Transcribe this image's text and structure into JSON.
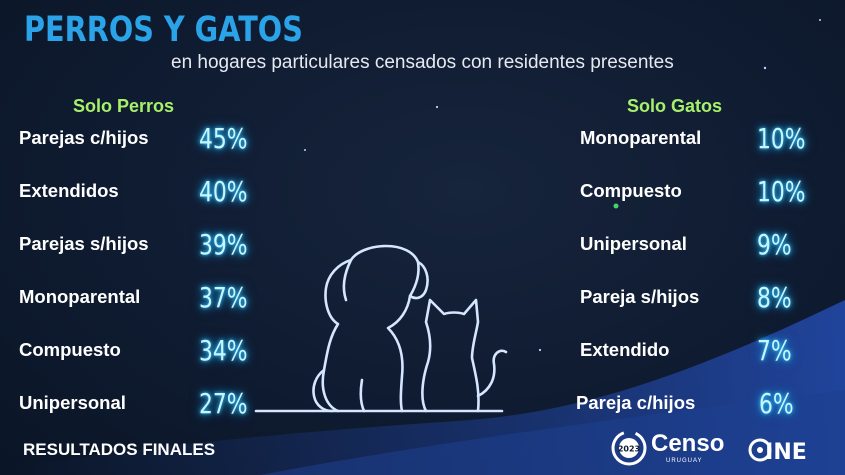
{
  "header": {
    "title": "PERROS Y GATOS",
    "subtitle": "en hogares particulares censados con residentes presentes"
  },
  "chart_data": [
    {
      "type": "table",
      "title": "Solo Perros",
      "categories": [
        "Parejas c/hijos",
        "Extendidos",
        "Parejas s/hijos",
        "Monoparental",
        "Compuesto",
        "Unipersonal"
      ],
      "values": [
        45,
        40,
        39,
        37,
        34,
        27
      ],
      "labels": [
        "45%",
        "40%",
        "39%",
        "37%",
        "34%",
        "27%"
      ]
    },
    {
      "type": "table",
      "title": "Solo Gatos",
      "categories": [
        "Monoparental",
        "Compuesto",
        "Unipersonal",
        "Pareja s/hijos",
        "Extendido",
        "Pareja c/hijos"
      ],
      "values": [
        10,
        10,
        9,
        8,
        7,
        6
      ],
      "labels": [
        "10%",
        "10%",
        "9%",
        "8%",
        "7%",
        "6%"
      ]
    }
  ],
  "footer": {
    "text": "RESULTADOS FINALES",
    "censo_logo_text": "Censo",
    "censo_logo_subtext": "URUGUAY",
    "censo_logo_year": "2023",
    "ine_logo_text": "INE"
  },
  "colors": {
    "background": "#0e1a2e",
    "title": "#2aa3e8",
    "column_heading": "#a6f06b",
    "percentage_glow": "#39c7ff",
    "wave": "#1d3f8f"
  },
  "icons": [
    "dog-cat-outline-illustration",
    "censo-logo",
    "ine-logo"
  ]
}
